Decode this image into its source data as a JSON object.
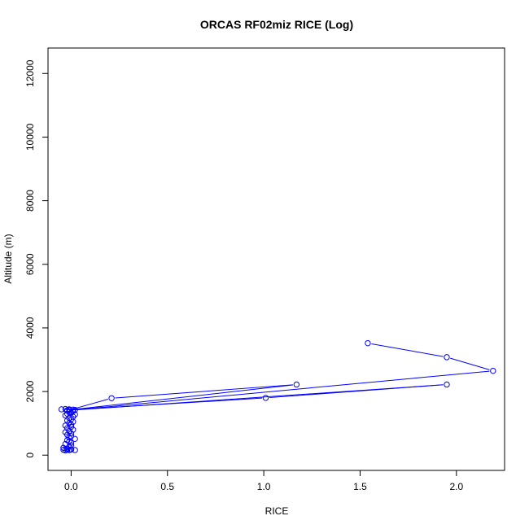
{
  "chart_data": {
    "type": "line",
    "title": "ORCAS RF02miz RICE (Log)",
    "xlabel": "RICE",
    "ylabel": "Altitude (m)",
    "xlim": [
      -0.12,
      2.25
    ],
    "ylim": [
      -480,
      12800
    ],
    "xticks": [
      0.0,
      0.5,
      1.0,
      1.5,
      2.0
    ],
    "xtick_labels": [
      "0.0",
      "0.5",
      "1.0",
      "1.5",
      "2.0"
    ],
    "yticks": [
      0,
      2000,
      4000,
      6000,
      8000,
      10000,
      12000
    ],
    "ytick_labels": [
      "0",
      "2000",
      "4000",
      "6000",
      "8000",
      "10000",
      "12000"
    ],
    "grid": false,
    "legend": "none",
    "series": [
      {
        "color": "#0000ff",
        "marker": "open-circle",
        "points": [
          [
            1.54,
            3520
          ],
          [
            1.95,
            3080
          ],
          [
            2.19,
            2650
          ],
          [
            -0.02,
            1400
          ],
          [
            0.21,
            1790
          ],
          [
            1.17,
            2220
          ],
          [
            -0.01,
            1420
          ],
          [
            1.01,
            1800
          ],
          [
            1.95,
            2220
          ],
          [
            0.02,
            1420
          ],
          [
            -0.05,
            1440
          ],
          [
            -0.03,
            1450
          ],
          [
            -0.01,
            1440
          ],
          [
            0.01,
            1430
          ],
          [
            -0.02,
            1410
          ],
          [
            0.01,
            1380
          ],
          [
            -0.01,
            1360
          ],
          [
            0.0,
            1330
          ],
          [
            -0.02,
            1300
          ],
          [
            0.02,
            1280
          ],
          [
            -0.03,
            1250
          ],
          [
            0.01,
            1210
          ],
          [
            -0.01,
            1170
          ],
          [
            0.0,
            1130
          ],
          [
            -0.02,
            1090
          ],
          [
            0.01,
            1050
          ],
          [
            -0.01,
            1010
          ],
          [
            0.0,
            960
          ],
          [
            -0.03,
            930
          ],
          [
            0.0,
            890
          ],
          [
            -0.02,
            850
          ],
          [
            0.01,
            800
          ],
          [
            -0.01,
            760
          ],
          [
            -0.03,
            720
          ],
          [
            0.0,
            680
          ],
          [
            -0.02,
            640
          ],
          [
            0.0,
            600
          ],
          [
            -0.01,
            560
          ],
          [
            0.02,
            510
          ],
          [
            -0.02,
            470
          ],
          [
            -0.01,
            430
          ],
          [
            0.0,
            390
          ],
          [
            -0.03,
            350
          ],
          [
            0.0,
            310
          ],
          [
            -0.01,
            270
          ],
          [
            -0.04,
            230
          ],
          [
            -0.02,
            200
          ],
          [
            0.0,
            180
          ],
          [
            -0.04,
            170
          ],
          [
            -0.02,
            165
          ],
          [
            0.02,
            160
          ],
          [
            -0.01,
            160
          ],
          [
            0.0,
            175
          ],
          [
            -0.03,
            150
          ]
        ]
      }
    ]
  }
}
